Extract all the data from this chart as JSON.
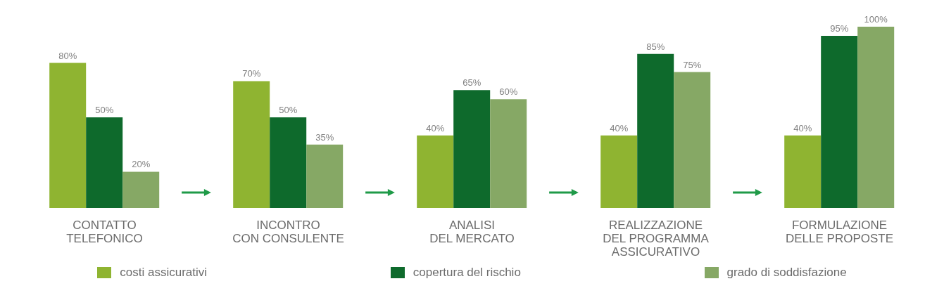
{
  "chart_data": {
    "type": "bar",
    "categories": [
      "CONTATTO\nTELEFONICO",
      "INCONTRO\nCON CONSULENTE",
      "ANALISI\nDEL MERCATO",
      "REALIZZAZIONE\nDEL PROGRAMMA\nASSICURATIVO",
      "FORMULAZIONE\nDELLE PROPOSTE"
    ],
    "series": [
      {
        "name": "costi assicurativi",
        "color": "#8fb431",
        "values": [
          80,
          70,
          40,
          40,
          40
        ],
        "value_labels": [
          "80%",
          "70%",
          "40%",
          "40%",
          "40%"
        ]
      },
      {
        "name": "copertura del rischio",
        "color": "#0e6a2c",
        "values": [
          50,
          50,
          65,
          85,
          95
        ],
        "value_labels": [
          "50%",
          "50%",
          "65%",
          "85%",
          "95%"
        ]
      },
      {
        "name": "grado di soddisfazione",
        "color": "#86a865",
        "values": [
          20,
          35,
          60,
          75,
          100
        ],
        "value_labels": [
          "20%",
          "35%",
          "60%",
          "75%",
          "100%"
        ]
      }
    ],
    "legend": "bottom"
  }
}
